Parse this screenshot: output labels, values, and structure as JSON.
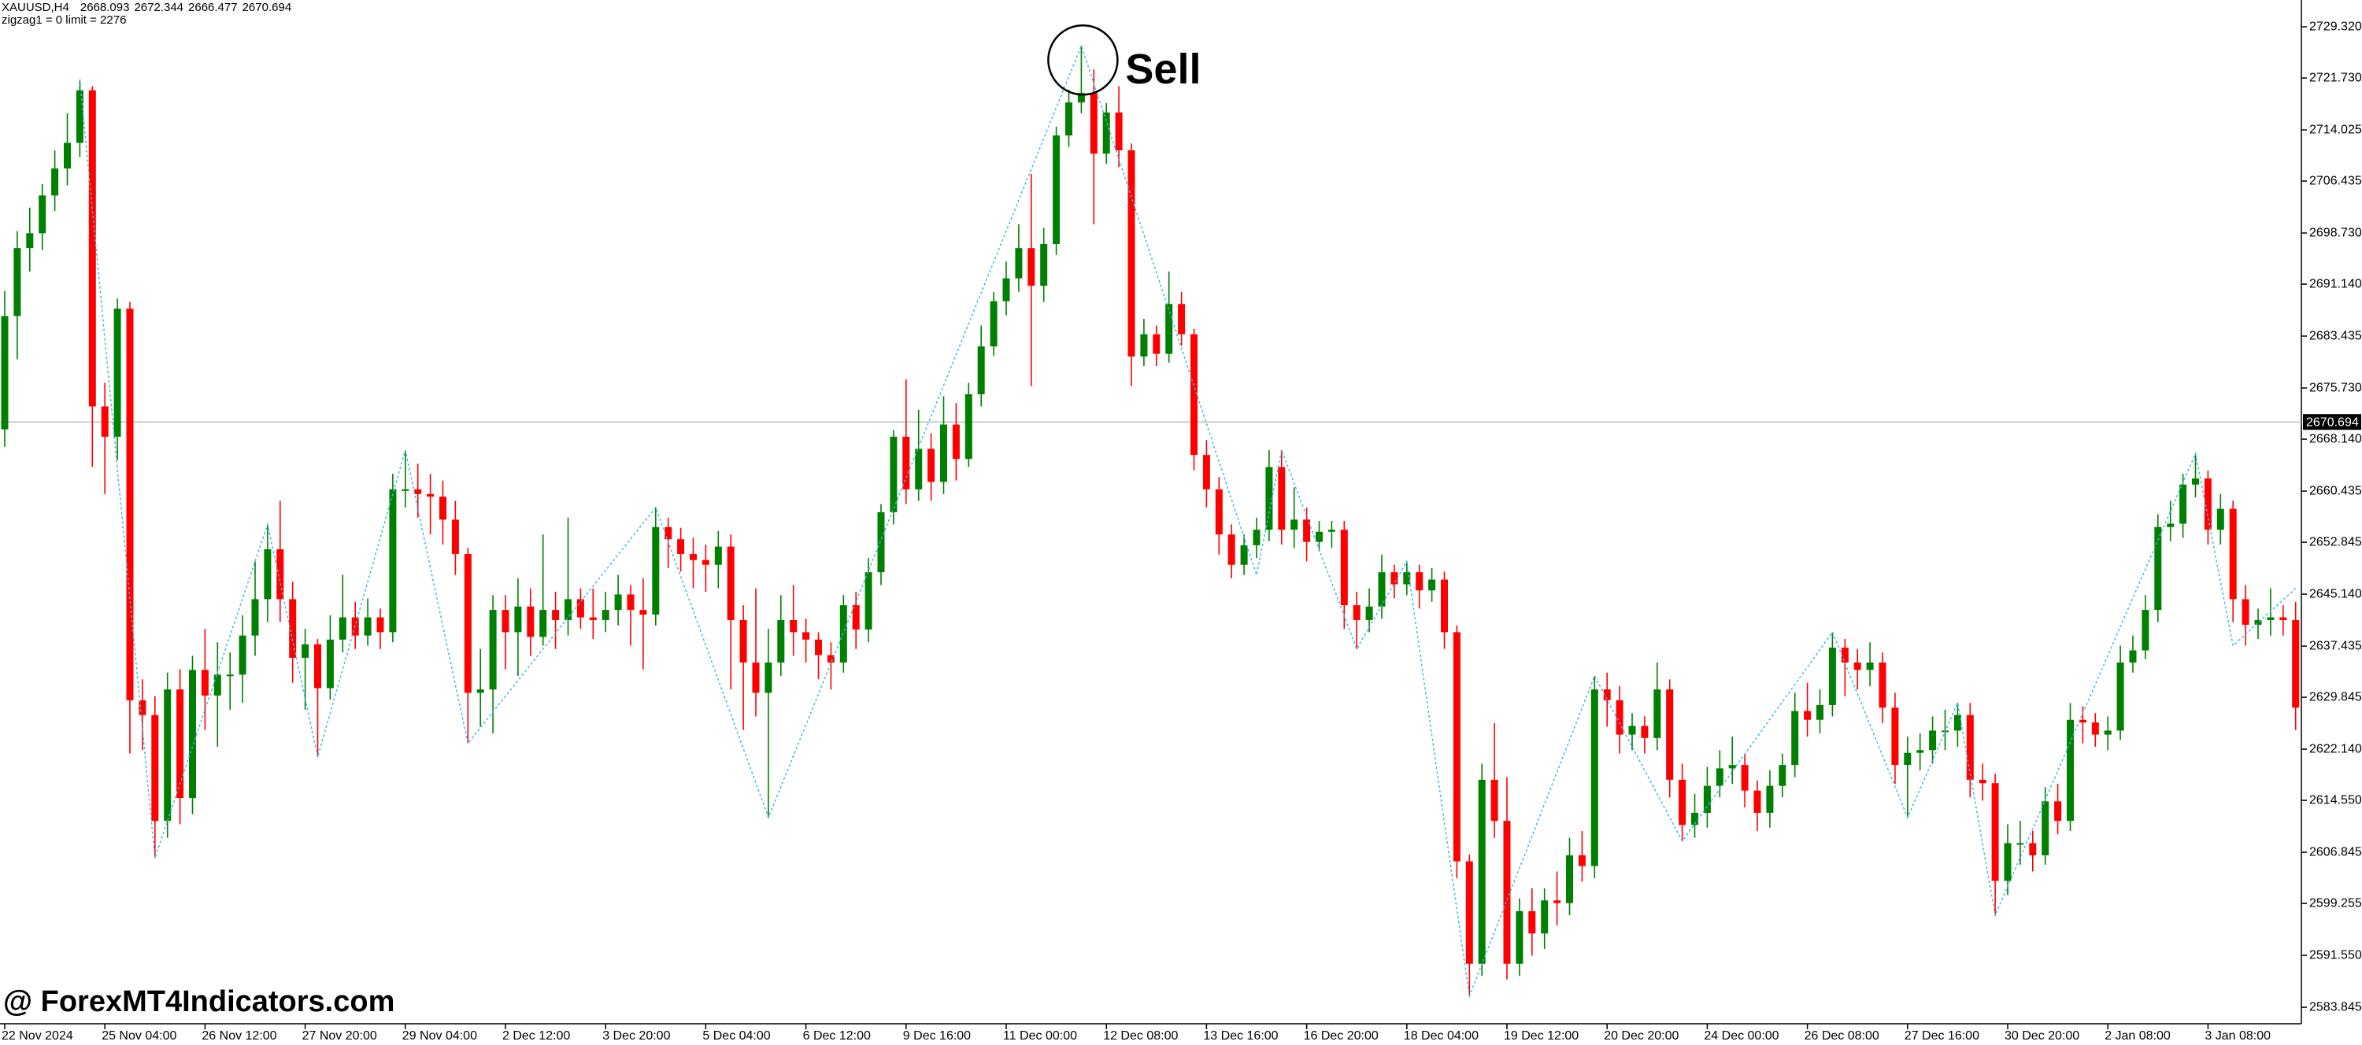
{
  "chart_data": {
    "type": "candlestick",
    "symbol": "XAUUSD,H4",
    "last_bar": [
      2668.093,
      2672.344,
      2666.477,
      2670.694
    ],
    "subtitle": "zigzag1 = 0 limit = 2276",
    "annotation": "Sell",
    "watermark": "@ ForexMT4Indicators.com",
    "up_color": "#008000",
    "down_color": "#ff0000",
    "zigzag_color": "#3fb8e6",
    "last_price_line_color": "#c0c0c0",
    "grid": false,
    "ylim": [
      2581.4,
      2733.3
    ],
    "yticks": [
      {
        "value": 2729.32,
        "label": "2729.320"
      },
      {
        "value": 2721.73,
        "label": "2721.730"
      },
      2714.025,
      2706.435,
      {
        "value": 2698.73,
        "label": "2698.730"
      },
      {
        "value": 2691.14,
        "label": "2691.140"
      },
      2683.435,
      {
        "value": 2675.73,
        "label": "2675.730"
      },
      {
        "value": 2668.14,
        "label": "2668.140"
      },
      2660.435,
      2652.845,
      {
        "value": 2645.14,
        "label": "2645.140"
      },
      2637.435,
      2629.845,
      {
        "value": 2622.14,
        "label": "2622.140"
      },
      {
        "value": 2614.55,
        "label": "2614.550"
      },
      2606.845,
      2599.255,
      {
        "value": 2591.55,
        "label": "2591.550"
      },
      2583.845
    ],
    "xticks": [
      {
        "value": 0,
        "label": "22 Nov 2024"
      },
      {
        "value": 8,
        "label": "25 Nov 04:00"
      },
      {
        "value": 16,
        "label": "26 Nov 12:00"
      },
      {
        "value": 24,
        "label": "27 Nov 20:00"
      },
      {
        "value": 32,
        "label": "29 Nov 04:00"
      },
      {
        "value": 40,
        "label": "2 Dec 12:00"
      },
      {
        "value": 48,
        "label": "3 Dec 20:00"
      },
      {
        "value": 56,
        "label": "5 Dec 04:00"
      },
      {
        "value": 64,
        "label": "6 Dec 12:00"
      },
      {
        "value": 72,
        "label": "9 Dec 16:00"
      },
      {
        "value": 80,
        "label": "11 Dec 00:00"
      },
      {
        "value": 88,
        "label": "12 Dec 08:00"
      },
      {
        "value": 96,
        "label": "13 Dec 16:00"
      },
      {
        "value": 104,
        "label": "16 Dec 20:00"
      },
      {
        "value": 112,
        "label": "18 Dec 04:00"
      },
      {
        "value": 120,
        "label": "19 Dec 12:00"
      },
      {
        "value": 128,
        "label": "20 Dec 20:00"
      },
      {
        "value": 136,
        "label": "24 Dec 00:00"
      },
      {
        "value": 144,
        "label": "26 Dec 08:00"
      },
      {
        "value": 152,
        "label": "27 Dec 16:00"
      },
      {
        "value": 160,
        "label": "30 Dec 20:00"
      },
      {
        "value": 168,
        "label": "2 Jan 08:00"
      },
      {
        "value": 176,
        "label": "3 Jan 08:00"
      }
    ],
    "open": [
      2669.6,
      2686.4,
      2696.5,
      2698.7,
      2704.3,
      2708.3,
      2712.1,
      2719.9,
      2673.0,
      2668.5,
      2687.5,
      2629.4,
      2627.2,
      2611.5,
      2631.0,
      2614.9,
      2633.9,
      2630.1,
      2633.2,
      2633.2,
      2639.0,
      2644.4,
      2651.8,
      2644.4,
      2635.7,
      2637.7,
      2631.2,
      2638.4,
      2641.7,
      2639.0,
      2641.7,
      2639.5,
      2660.7,
      2660.7,
      2660.0,
      2659.6,
      2656.2,
      2651.1,
      2630.5,
      2631.0,
      2642.8,
      2639.5,
      2643.3,
      2638.8,
      2642.8,
      2641.3,
      2644.4,
      2641.7,
      2641.3,
      2642.8,
      2645.1,
      2642.8,
      2642.1,
      2655.1,
      2653.3,
      2651.1,
      2650.2,
      2649.5,
      2652.2,
      2641.3,
      2635.0,
      2630.5,
      2635.0,
      2641.3,
      2639.5,
      2638.4,
      2636.1,
      2635.0,
      2643.5,
      2639.9,
      2648.4,
      2657.3,
      2668.5,
      2660.7,
      2666.7,
      2661.8,
      2670.3,
      2665.2,
      2674.8,
      2681.9,
      2688.6,
      2692.0,
      2696.5,
      2690.9,
      2697.1,
      2713.2,
      2718.1,
      2719.5,
      2710.5,
      2716.6,
      2711.0,
      2680.4,
      2683.7,
      2680.8,
      2688.2,
      2683.7,
      2665.8,
      2660.7,
      2654.0,
      2649.5,
      2652.4,
      2654.7,
      2664.0,
      2654.7,
      2656.2,
      2652.9,
      2654.4,
      2654.7,
      2643.5,
      2641.3,
      2643.3,
      2648.4,
      2646.6,
      2648.4,
      2645.7,
      2647.3,
      2639.5,
      2605.5,
      2590.3,
      2617.6,
      2611.5,
      2590.3,
      2598.1,
      2594.8,
      2599.7,
      2599.3,
      2606.4,
      2604.8,
      2631.0,
      2629.4,
      2624.3,
      2625.6,
      2623.8,
      2631.0,
      2617.6,
      2610.9,
      2612.7,
      2616.7,
      2619.3,
      2619.8,
      2616.0,
      2612.7,
      2616.7,
      2619.8,
      2627.8,
      2626.5,
      2628.7,
      2637.2,
      2635.0,
      2633.9,
      2635.0,
      2628.3,
      2619.8,
      2621.6,
      2622.0,
      2624.9,
      2624.9,
      2627.2,
      2617.6,
      2617.1,
      2602.6,
      2608.2,
      2608.2,
      2606.4,
      2614.4,
      2611.5,
      2626.5,
      2626.1,
      2624.3,
      2624.9,
      2635.0,
      2636.8,
      2642.8,
      2655.1,
      2655.6,
      2661.4,
      2662.3,
      2654.7,
      2657.8,
      2644.4,
      2640.6,
      2641.3,
      2641.7,
      2641.3
    ],
    "high": [
      2690.1,
      2699.0,
      2702.5,
      2706.0,
      2711.0,
      2716.5,
      2721.5,
      2720.5,
      2676.5,
      2689.0,
      2688.5,
      2632.5,
      2630.0,
      2633.5,
      2634.0,
      2636.0,
      2640.0,
      2638.0,
      2636.5,
      2642.0,
      2650.0,
      2655.5,
      2659.0,
      2647.0,
      2640.0,
      2638.5,
      2642.0,
      2648.0,
      2644.0,
      2644.5,
      2643.0,
      2663.0,
      2666.5,
      2664.5,
      2663.0,
      2662.0,
      2659.0,
      2652.0,
      2637.0,
      2645.0,
      2645.0,
      2647.5,
      2646.0,
      2654.0,
      2645.5,
      2656.5,
      2646.0,
      2646.0,
      2645.5,
      2648.0,
      2646.5,
      2647.5,
      2658.0,
      2656.5,
      2655.0,
      2653.5,
      2652.5,
      2654.5,
      2654.0,
      2643.5,
      2646.0,
      2640.0,
      2645.0,
      2646.5,
      2641.5,
      2639.5,
      2638.0,
      2645.0,
      2645.5,
      2650.5,
      2658.5,
      2669.5,
      2677.0,
      2672.5,
      2669.0,
      2674.5,
      2673.5,
      2676.5,
      2685.0,
      2690.0,
      2694.5,
      2700.0,
      2707.5,
      2699.5,
      2714.5,
      2720.0,
      2726.5,
      2723.0,
      2718.0,
      2720.5,
      2712.0,
      2686.0,
      2685.0,
      2693.0,
      2690.0,
      2684.5,
      2668.0,
      2662.5,
      2655.5,
      2654.0,
      2656.5,
      2666.5,
      2666.5,
      2661.0,
      2658.0,
      2656.0,
      2656.0,
      2656.0,
      2645.5,
      2646.0,
      2651.0,
      2649.5,
      2650.0,
      2649.5,
      2649.0,
      2648.5,
      2640.5,
      2606.5,
      2620.0,
      2626.0,
      2618.0,
      2600.0,
      2601.5,
      2601.5,
      2604.0,
      2609.0,
      2610.0,
      2633.0,
      2633.5,
      2631.5,
      2627.5,
      2627.0,
      2635.0,
      2632.5,
      2620.0,
      2615.5,
      2619.5,
      2622.0,
      2624.0,
      2621.5,
      2617.5,
      2619.0,
      2621.5,
      2630.5,
      2632.0,
      2631.0,
      2639.5,
      2638.5,
      2637.0,
      2638.0,
      2636.5,
      2630.5,
      2624.0,
      2624.5,
      2627.0,
      2628.0,
      2629.0,
      2629.0,
      2620.0,
      2618.5,
      2611.0,
      2611.5,
      2610.0,
      2616.5,
      2617.0,
      2629.0,
      2628.5,
      2627.5,
      2627.0,
      2637.5,
      2639.0,
      2645.0,
      2657.0,
      2659.0,
      2663.0,
      2666.0,
      2663.5,
      2660.0,
      2659.0,
      2646.5,
      2643.0,
      2646.0,
      2643.5,
      2644.0
    ],
    "low": [
      2667.0,
      2680.0,
      2693.0,
      2696.2,
      2702.0,
      2705.8,
      2710.0,
      2664.0,
      2660.0,
      2665.0,
      2621.5,
      2622.0,
      2606.0,
      2609.0,
      2611.0,
      2612.5,
      2625.0,
      2622.5,
      2628.0,
      2629.0,
      2636.0,
      2641.0,
      2641.0,
      2632.0,
      2628.0,
      2621.0,
      2629.5,
      2636.5,
      2637.0,
      2637.5,
      2637.0,
      2638.0,
      2658.0,
      2656.5,
      2654.0,
      2652.5,
      2648.0,
      2623.0,
      2625.5,
      2624.5,
      2634.0,
      2633.0,
      2636.0,
      2637.5,
      2637.0,
      2639.0,
      2640.0,
      2638.5,
      2639.5,
      2640.5,
      2637.5,
      2634.0,
      2640.5,
      2649.0,
      2648.5,
      2646.0,
      2645.5,
      2646.0,
      2631.0,
      2625.0,
      2627.0,
      2612.0,
      2633.0,
      2636.0,
      2635.0,
      2632.5,
      2631.0,
      2633.5,
      2637.0,
      2638.0,
      2646.5,
      2655.5,
      2658.5,
      2659.0,
      2659.0,
      2660.0,
      2662.0,
      2664.0,
      2673.0,
      2680.5,
      2686.5,
      2690.0,
      2676.0,
      2688.5,
      2695.5,
      2711.5,
      2716.5,
      2700.0,
      2709.0,
      2708.5,
      2676.0,
      2679.0,
      2679.0,
      2679.5,
      2682.0,
      2663.5,
      2658.0,
      2651.0,
      2647.5,
      2648.0,
      2650.5,
      2653.0,
      2652.5,
      2652.0,
      2650.0,
      2651.5,
      2652.0,
      2640.0,
      2637.0,
      2639.5,
      2641.5,
      2644.5,
      2645.0,
      2643.0,
      2644.0,
      2637.0,
      2603.0,
      2585.5,
      2588.5,
      2609.0,
      2588.0,
      2588.5,
      2591.5,
      2592.5,
      2596.0,
      2597.5,
      2602.5,
      2603.0,
      2625.5,
      2621.5,
      2622.0,
      2621.5,
      2622.0,
      2615.0,
      2608.5,
      2609.0,
      2610.5,
      2615.0,
      2617.0,
      2613.5,
      2610.0,
      2610.5,
      2615.0,
      2618.0,
      2624.0,
      2624.5,
      2627.0,
      2630.0,
      2631.0,
      2631.5,
      2626.0,
      2617.0,
      2612.0,
      2619.0,
      2620.0,
      2622.0,
      2622.5,
      2615.0,
      2614.5,
      2597.5,
      2600.5,
      2605.0,
      2604.0,
      2605.0,
      2609.5,
      2610.0,
      2623.0,
      2622.5,
      2622.0,
      2623.5,
      2633.5,
      2635.5,
      2641.0,
      2653.0,
      2653.5,
      2659.5,
      2652.5,
      2652.5,
      2641.0,
      2637.5,
      2638.5,
      2639.0,
      2639.0,
      2625.0
    ],
    "close": [
      2686.4,
      2696.5,
      2698.7,
      2704.3,
      2708.3,
      2712.1,
      2719.9,
      2673.0,
      2668.5,
      2687.5,
      2629.4,
      2627.2,
      2611.5,
      2631.0,
      2614.9,
      2633.9,
      2630.1,
      2633.2,
      2633.2,
      2639.0,
      2644.4,
      2651.8,
      2644.4,
      2635.7,
      2637.7,
      2631.2,
      2638.4,
      2641.7,
      2639.0,
      2641.7,
      2639.5,
      2660.7,
      2660.7,
      2660.0,
      2659.6,
      2656.2,
      2651.1,
      2630.5,
      2631.0,
      2642.8,
      2639.5,
      2643.3,
      2638.8,
      2642.8,
      2641.3,
      2644.4,
      2641.7,
      2641.3,
      2642.8,
      2645.1,
      2642.8,
      2642.1,
      2655.1,
      2653.3,
      2651.1,
      2650.2,
      2649.5,
      2652.2,
      2641.3,
      2635.0,
      2630.5,
      2635.0,
      2641.3,
      2639.5,
      2638.4,
      2636.1,
      2635.0,
      2643.5,
      2639.9,
      2648.4,
      2657.3,
      2668.5,
      2660.7,
      2666.7,
      2661.8,
      2670.3,
      2665.2,
      2674.8,
      2681.9,
      2688.6,
      2692.0,
      2696.5,
      2690.9,
      2697.1,
      2713.2,
      2718.1,
      2719.5,
      2710.5,
      2716.6,
      2711.0,
      2680.4,
      2683.7,
      2680.8,
      2688.2,
      2683.7,
      2665.8,
      2660.7,
      2654.0,
      2649.5,
      2652.4,
      2654.7,
      2664.0,
      2654.7,
      2656.2,
      2652.9,
      2654.4,
      2654.7,
      2643.5,
      2641.3,
      2643.3,
      2648.4,
      2646.6,
      2648.4,
      2645.7,
      2647.3,
      2639.5,
      2605.5,
      2590.3,
      2617.6,
      2611.5,
      2590.3,
      2598.1,
      2594.8,
      2599.7,
      2599.3,
      2606.4,
      2604.8,
      2631.0,
      2629.4,
      2624.3,
      2625.6,
      2623.8,
      2631.0,
      2617.6,
      2610.9,
      2612.7,
      2616.7,
      2619.3,
      2619.8,
      2616.0,
      2612.7,
      2616.7,
      2619.8,
      2627.8,
      2626.5,
      2628.7,
      2637.2,
      2635.0,
      2633.9,
      2635.0,
      2628.3,
      2619.8,
      2621.6,
      2622.0,
      2624.9,
      2624.9,
      2627.2,
      2617.6,
      2617.1,
      2602.6,
      2608.2,
      2608.2,
      2606.4,
      2614.4,
      2611.5,
      2626.5,
      2626.1,
      2624.3,
      2624.9,
      2635.0,
      2636.8,
      2642.8,
      2655.1,
      2655.6,
      2661.4,
      2662.3,
      2654.7,
      2657.8,
      2644.4,
      2640.6,
      2641.3,
      2641.7,
      2641.3,
      2628.3
    ],
    "zigzag": {
      "x": [
        6,
        12,
        21,
        25,
        32,
        37,
        52,
        61,
        86,
        100,
        102,
        108,
        112,
        117,
        127,
        134,
        146,
        152,
        156,
        159,
        175,
        178,
        183
      ],
      "values": [
        2721.5,
        2606.0,
        2655.5,
        2621.0,
        2666.5,
        2623.0,
        2658.0,
        2612.0,
        2726.5,
        2648.0,
        2666.5,
        2637.0,
        2650.0,
        2585.5,
        2633.0,
        2608.5,
        2639.5,
        2612.0,
        2629.0,
        2597.5,
        2666.0,
        2637.5,
        2646.0
      ]
    }
  }
}
